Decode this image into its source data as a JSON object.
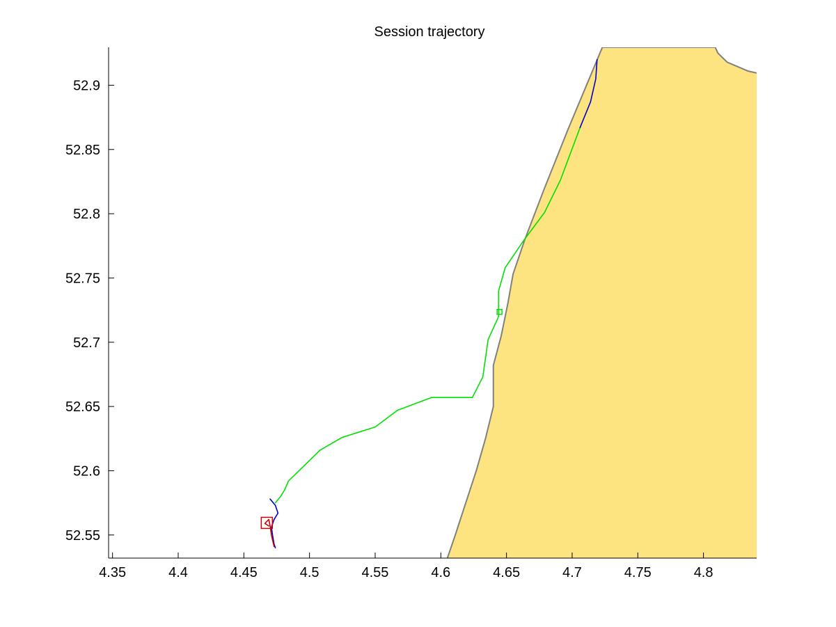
{
  "chart_data": {
    "type": "line",
    "title": "Session trajectory",
    "xlabel": "",
    "ylabel": "",
    "xlim": [
      4.347,
      4.8405
    ],
    "ylim": [
      52.532,
      52.9295
    ],
    "x_ticks": [
      4.35,
      4.4,
      4.45,
      4.5,
      4.55,
      4.6,
      4.65,
      4.7,
      4.75,
      4.8
    ],
    "x_tick_labels": [
      "4.35",
      "4.4",
      "4.45",
      "4.5",
      "4.55",
      "4.6",
      "4.65",
      "4.7",
      "4.75",
      "4.8"
    ],
    "y_ticks": [
      52.55,
      52.6,
      52.65,
      52.7,
      52.75,
      52.8,
      52.85,
      52.9
    ],
    "y_tick_labels": [
      "52.55",
      "52.6",
      "52.65",
      "52.7",
      "52.75",
      "52.8",
      "52.85",
      "52.9"
    ],
    "grid": false,
    "land": {
      "fill_color": "#fde480",
      "coast_color": "#808080",
      "coastline": [
        [
          4.605,
          52.532
        ],
        [
          4.611,
          52.55
        ],
        [
          4.619,
          52.575
        ],
        [
          4.627,
          52.6
        ],
        [
          4.634,
          52.625
        ],
        [
          4.64,
          52.65
        ],
        [
          4.64,
          52.682
        ],
        [
          4.646,
          52.705
        ],
        [
          4.651,
          52.73
        ],
        [
          4.655,
          52.753
        ],
        [
          4.664,
          52.78
        ],
        [
          4.679,
          52.82
        ],
        [
          4.697,
          52.866
        ],
        [
          4.713,
          52.905
        ],
        [
          4.723,
          52.9295
        ],
        [
          4.809,
          52.9295
        ],
        [
          4.811,
          52.925
        ],
        [
          4.818,
          52.918
        ],
        [
          4.834,
          52.911
        ],
        [
          4.8405,
          52.9095
        ]
      ]
    },
    "series": [
      {
        "color": "#00e000",
        "points": [
          [
            4.474,
            52.575
          ],
          [
            4.478,
            52.58
          ],
          [
            4.481,
            52.585
          ],
          [
            4.484,
            52.592
          ],
          [
            4.495,
            52.603
          ],
          [
            4.508,
            52.616
          ],
          [
            4.525,
            52.626
          ],
          [
            4.55,
            52.634
          ],
          [
            4.567,
            52.647
          ],
          [
            4.593,
            52.657
          ],
          [
            4.624,
            52.657
          ],
          [
            4.632,
            52.673
          ],
          [
            4.636,
            52.702
          ],
          [
            4.644,
            52.72
          ],
          [
            4.644,
            52.74
          ],
          [
            4.649,
            52.758
          ],
          [
            4.663,
            52.779
          ],
          [
            4.679,
            52.801
          ],
          [
            4.691,
            52.826
          ],
          [
            4.706,
            52.867
          ]
        ]
      },
      {
        "color": "#0000c8",
        "points": [
          [
            4.706,
            52.867
          ],
          [
            4.714,
            52.887
          ],
          [
            4.718,
            52.905
          ],
          [
            4.719,
            52.92
          ]
        ]
      },
      {
        "color": "#0000c8",
        "points": [
          [
            4.47,
            52.578
          ],
          [
            4.474,
            52.573
          ],
          [
            4.476,
            52.567
          ],
          [
            4.473,
            52.562
          ],
          [
            4.471,
            52.556
          ],
          [
            4.472,
            52.549
          ],
          [
            4.473,
            52.543
          ],
          [
            4.474,
            52.54
          ]
        ]
      },
      {
        "color": "#d00000",
        "points": [
          [
            4.473,
            52.541
          ],
          [
            4.471,
            52.55
          ],
          [
            4.47,
            52.557
          ],
          [
            4.469,
            52.562
          ],
          [
            4.466,
            52.559
          ],
          [
            4.469,
            52.557
          ]
        ]
      }
    ],
    "markers": [
      {
        "shape": "square",
        "color": "#d00000",
        "x": 4.4675,
        "y": 52.5594
      },
      {
        "shape": "square",
        "color": "#00e000",
        "x": 4.6447,
        "y": 52.7236
      }
    ]
  }
}
